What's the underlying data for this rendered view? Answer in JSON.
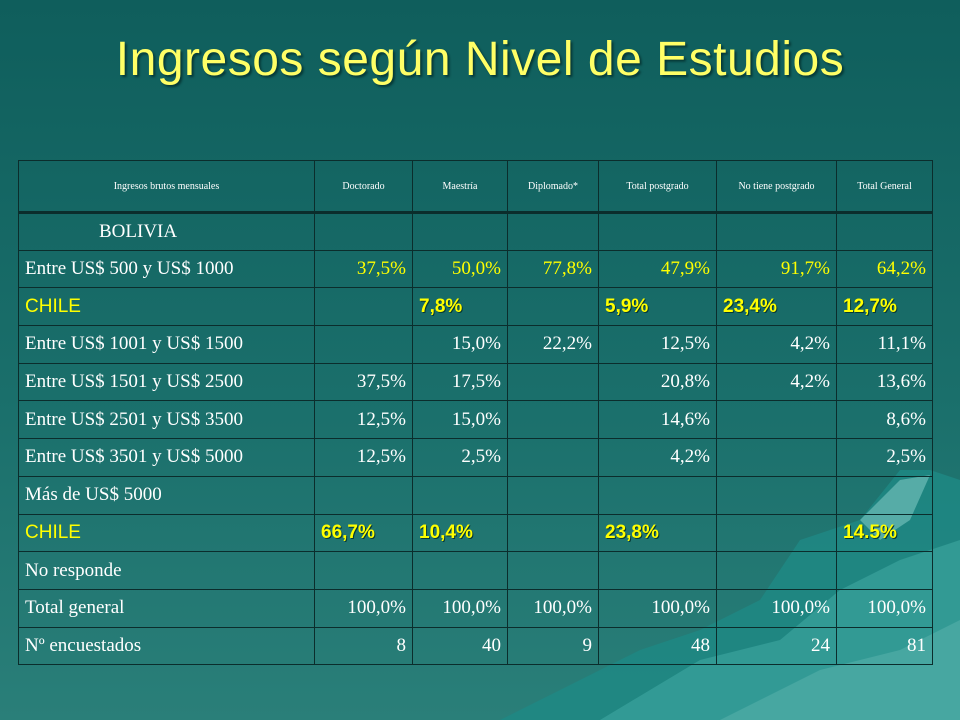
{
  "title": "Ingresos según Nivel de Estudios",
  "colors": {
    "title": "#ffff66",
    "highlight": "#ffff00",
    "background": "#1a6f6b",
    "border": "#0b2d2c"
  },
  "table": {
    "headers": [
      "Ingresos brutos mensuales",
      "Doctorado",
      "Maestría",
      "Diplomado*",
      "Total postgrado",
      "No tiene postgrado",
      "Total General"
    ],
    "rows": [
      [
        "BOLIVIA",
        "",
        "",
        "",
        "",
        "",
        ""
      ],
      [
        "Entre US$ 500 y  US$ 1000",
        "37,5%",
        "50,0%",
        "77,8%",
        "47,9%",
        "91,7%",
        "64,2%"
      ],
      [
        "CHILE",
        "",
        "7,8%",
        "",
        "5,9%",
        "23,4%",
        "12,7%"
      ],
      [
        "Entre US$ 1001 y US$ 1500",
        "",
        "15,0%",
        "22,2%",
        "12,5%",
        "4,2%",
        "11,1%"
      ],
      [
        "Entre US$ 1501 y US$ 2500",
        "37,5%",
        "17,5%",
        "",
        "20,8%",
        "4,2%",
        "13,6%"
      ],
      [
        "Entre US$ 2501 y US$ 3500",
        "12,5%",
        "15,0%",
        "",
        "14,6%",
        "",
        "8,6%"
      ],
      [
        "Entre US$ 3501 y US$ 5000",
        "12,5%",
        "2,5%",
        "",
        "4,2%",
        "",
        "2,5%"
      ],
      [
        "Más de US$ 5000",
        "",
        "",
        "",
        "",
        "",
        ""
      ],
      [
        "CHILE",
        "66,7%",
        "10,4%",
        "",
        "23,8%",
        "",
        "14.5%"
      ],
      [
        "No responde",
        "",
        "",
        "",
        "",
        "",
        ""
      ],
      [
        "Total general",
        "100,0%",
        "100,0%",
        "100,0%",
        "100,0%",
        "100,0%",
        "100,0%"
      ],
      [
        "Nº encuestados",
        "8",
        "40",
        "9",
        "48",
        "24",
        "81"
      ]
    ]
  }
}
